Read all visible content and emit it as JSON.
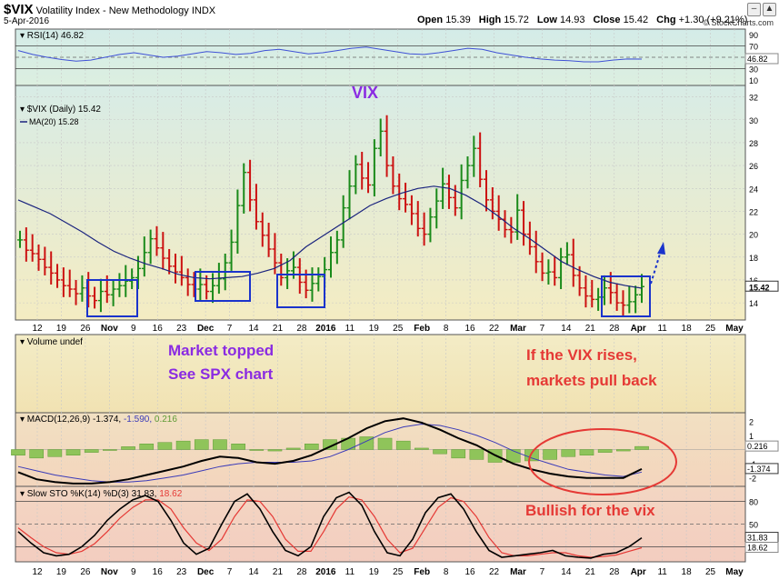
{
  "header": {
    "symbol": "$VIX",
    "name": "Volatility Index - New Methodology",
    "exchange": "INDX",
    "date": "5-Apr-2016",
    "open_label": "Open",
    "open": "15.39",
    "high_label": "High",
    "high": "15.72",
    "low_label": "Low",
    "low": "14.93",
    "close_label": "Close",
    "close": "15.42",
    "chg_label": "Chg",
    "chg": "+1.30 (+9.21%)",
    "watermark": "© StockCharts.com"
  },
  "panels": {
    "rsi_label": "RSI(14) 46.82",
    "price_label": "$VIX (Daily) 15.42",
    "ma_label": "MA(20) 15.28",
    "volume_label": "Volume undef",
    "macd_label": "MACD(12,26,9) -1.374, -1.590, 0.216",
    "macd_label_parts": [
      "MACD(12,26,9) -1.374,",
      "-1.590,",
      "0.216"
    ],
    "sto_label": "Slow STO %K(14) %D(3) 31.83, 18.62",
    "sto_label_parts": [
      "Slow STO %K(14) %D(3) 31.83,",
      "18.62"
    ]
  },
  "annotations": {
    "vix_title": "VIX",
    "market_topped_1": "Market topped",
    "market_topped_2": "See SPX chart",
    "vix_rises_1": "If the VIX rises,",
    "vix_rises_2": "markets pull back",
    "bullish": "Bullish for the vix"
  },
  "colors": {
    "up": "#1a8a1a",
    "down": "#cc1111",
    "ma": "#1a237e",
    "rsi": "#3f51d6",
    "annot_purple": "#8a2be2",
    "annot_red": "#e53935",
    "box": "#1a33cc"
  },
  "x_ticks": [
    "12",
    "19",
    "26",
    "Nov",
    "9",
    "16",
    "23",
    "Dec",
    "7",
    "14",
    "21",
    "28",
    "2016",
    "11",
    "19",
    "25",
    "Feb",
    "8",
    "16",
    "22",
    "Mar",
    "7",
    "14",
    "21",
    "28",
    "Apr",
    "11",
    "18",
    "25",
    "May"
  ],
  "chart_data": [
    {
      "type": "line",
      "title": "RSI(14) 46.82",
      "y_ticks": [
        90,
        70,
        50,
        30,
        10
      ],
      "ylim": [
        0,
        100
      ],
      "last_value_label": "46.82",
      "series": [
        {
          "name": "RSI(14)",
          "values": [
            62,
            55,
            50,
            46,
            43,
            45,
            50,
            55,
            58,
            54,
            50,
            52,
            56,
            60,
            58,
            55,
            57,
            62,
            64,
            60,
            56,
            58,
            62,
            66,
            68,
            64,
            60,
            56,
            55,
            58,
            62,
            66,
            64,
            58,
            54,
            50,
            47,
            45,
            44,
            42,
            42,
            45,
            47,
            46.82
          ]
        }
      ]
    },
    {
      "type": "candlestick",
      "title": "$VIX (Daily) 15.42",
      "y_ticks": [
        14,
        16,
        18,
        20,
        22,
        24,
        26,
        28,
        30,
        32
      ],
      "ylim": [
        12.5,
        33
      ],
      "last_value_label": "15.42",
      "series": [
        {
          "name": "$VIX (Daily)",
          "values": [
            19.5,
            18.6,
            18.3,
            17.8,
            17.1,
            16.6,
            16.0,
            15.5,
            15.2,
            14.8,
            15.3,
            14.6,
            14.2,
            15.0,
            14.7,
            15.2,
            15.5,
            15.9,
            16.2,
            17.0,
            18.4,
            19.6,
            18.8,
            17.9,
            17.2,
            16.7,
            16.2,
            15.6,
            15.2,
            15.6,
            15.0,
            15.5,
            16.1,
            17.5,
            19.3,
            22.5,
            25.4,
            23.0,
            21.1,
            19.9,
            18.7,
            17.5,
            16.2,
            16.8,
            17.1,
            15.8,
            15.1,
            15.7,
            16.3,
            16.9,
            18.4,
            19.5,
            22.3,
            24.2,
            26.1,
            24.9,
            24.3,
            27.5,
            29.0,
            26.0,
            24.2,
            23.1,
            22.6,
            21.8,
            20.5,
            20.0,
            21.5,
            22.9,
            24.4,
            23.2,
            22.3,
            24.7,
            26.0,
            27.5,
            24.8,
            23.0,
            22.0,
            21.3,
            20.4,
            20.2,
            22.1,
            20.0,
            18.9,
            17.6,
            16.6,
            16.7,
            16.2,
            18.0,
            18.2,
            16.4,
            15.3,
            14.6,
            14.3,
            14.5,
            15.3,
            14.9,
            14.0,
            13.8,
            14.1,
            14.7,
            15.42
          ]
        },
        {
          "name": "MA(20) 15.28",
          "values": [
            23.0,
            22.4,
            21.8,
            21.0,
            20.2,
            19.3,
            18.5,
            17.9,
            17.4,
            17.0,
            16.5,
            16.2,
            16.1,
            16.2,
            16.3,
            16.6,
            17.0,
            17.7,
            18.9,
            19.8,
            20.7,
            21.6,
            22.5,
            23.1,
            23.6,
            24.0,
            24.2,
            24.0,
            23.4,
            22.6,
            21.6,
            20.5,
            19.6,
            18.6,
            17.6,
            16.9,
            16.3,
            15.8,
            15.5,
            15.28
          ]
        }
      ],
      "boxes_note": "highlight boxes around Oct-Nov, Nov-Dec, Dec late, and Mar-Apr lows"
    },
    {
      "type": "bar",
      "title": "MACD(12,26,9) -1.374, -1.590, 0.216",
      "y_ticks": [
        2,
        1,
        -1,
        -2
      ],
      "ylim": [
        -2.6,
        2.6
      ],
      "last_value_labels": [
        "0.216",
        "-1.374"
      ],
      "series": [
        {
          "name": "MACD(12,26,9)",
          "values": [
            -1.6,
            -2.1,
            -2.3,
            -2.4,
            -2.4,
            -2.3,
            -2.1,
            -1.8,
            -1.5,
            -1.2,
            -0.8,
            -0.5,
            -0.6,
            -0.9,
            -1.0,
            -0.8,
            -0.4,
            0.2,
            0.8,
            1.5,
            2.0,
            2.2,
            1.9,
            1.4,
            0.8,
            0.3,
            -0.4,
            -1.0,
            -1.4,
            -1.7,
            -1.9,
            -2.0,
            -2.0,
            -2.0,
            -1.374
          ]
        },
        {
          "name": "Signal",
          "values": [
            -1.2,
            -1.5,
            -1.8,
            -2.0,
            -2.2,
            -2.3,
            -2.3,
            -2.2,
            -2.0,
            -1.8,
            -1.5,
            -1.2,
            -1.0,
            -0.9,
            -0.9,
            -0.9,
            -0.8,
            -0.5,
            0.0,
            0.6,
            1.2,
            1.6,
            1.8,
            1.7,
            1.4,
            1.0,
            0.5,
            -0.1,
            -0.6,
            -1.0,
            -1.4,
            -1.6,
            -1.8,
            -1.9,
            -1.59
          ]
        },
        {
          "name": "Histogram",
          "values": [
            -0.4,
            -0.6,
            -0.5,
            -0.4,
            -0.2,
            0.0,
            0.2,
            0.4,
            0.5,
            0.6,
            0.7,
            0.7,
            0.4,
            0.0,
            -0.1,
            0.1,
            0.4,
            0.7,
            0.8,
            0.9,
            0.8,
            0.6,
            0.1,
            -0.3,
            -0.6,
            -0.7,
            -0.9,
            -0.9,
            -0.8,
            -0.7,
            -0.5,
            -0.4,
            -0.2,
            -0.1,
            0.216
          ]
        }
      ]
    },
    {
      "type": "line",
      "title": "Slow STO %K(14) %D(3) 31.83, 18.62",
      "y_ticks": [
        80,
        50,
        20
      ],
      "ylim": [
        0,
        100
      ],
      "last_value_labels": [
        "31.83",
        "18.62"
      ],
      "series": [
        {
          "name": "%K(14)",
          "values": [
            40,
            25,
            12,
            8,
            10,
            20,
            35,
            55,
            70,
            82,
            88,
            80,
            55,
            25,
            10,
            18,
            50,
            80,
            90,
            70,
            40,
            15,
            8,
            20,
            60,
            85,
            92,
            75,
            40,
            12,
            8,
            30,
            65,
            85,
            90,
            70,
            40,
            15,
            6,
            8,
            10,
            12,
            15,
            8,
            6,
            5,
            10,
            12,
            20,
            31.83
          ]
        },
        {
          "name": "%D(3)",
          "values": [
            45,
            32,
            20,
            12,
            10,
            14,
            24,
            40,
            58,
            72,
            82,
            82,
            70,
            45,
            25,
            15,
            30,
            60,
            82,
            80,
            60,
            30,
            14,
            14,
            40,
            70,
            86,
            82,
            60,
            30,
            12,
            18,
            45,
            72,
            85,
            80,
            60,
            32,
            12,
            8,
            8,
            10,
            12,
            12,
            8,
            6,
            7,
            9,
            14,
            18.62
          ]
        }
      ]
    }
  ]
}
